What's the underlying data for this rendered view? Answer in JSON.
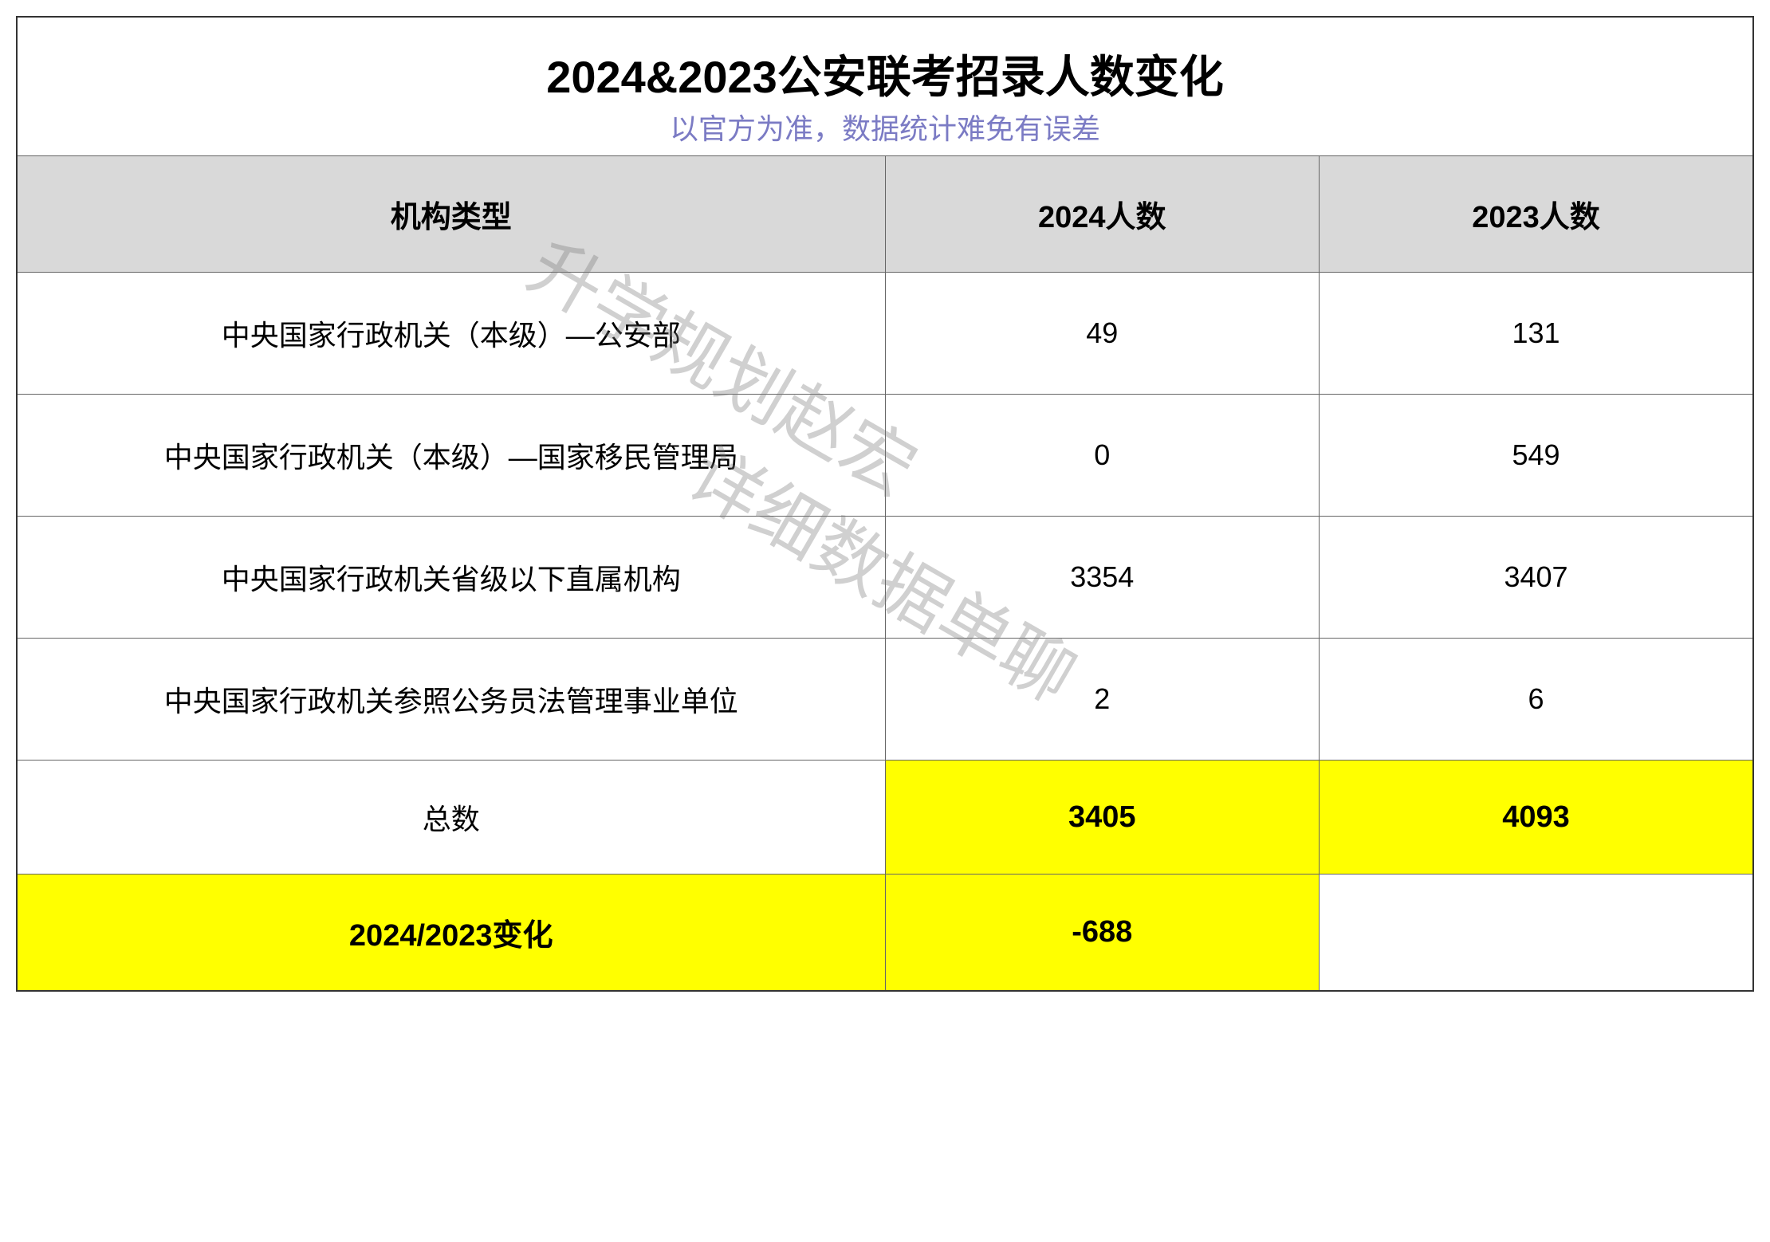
{
  "title": "2024&2023公安联考招录人数变化",
  "subtitle": "以官方为准，数据统计难免有误差",
  "headers": {
    "type": "机构类型",
    "year2024": "2024人数",
    "year2023": "2023人数"
  },
  "rows": [
    {
      "type": "中央国家行政机关（本级）—公安部",
      "y2024": "49",
      "y2023": "131"
    },
    {
      "type": "中央国家行政机关（本级）—国家移民管理局",
      "y2024": "0",
      "y2023": "549"
    },
    {
      "type": "中央国家行政机关省级以下直属机构",
      "y2024": "3354",
      "y2023": "3407"
    },
    {
      "type": "中央国家行政机关参照公务员法管理事业单位",
      "y2024": "2",
      "y2023": "6"
    }
  ],
  "total": {
    "label": "总数",
    "y2024": "3405",
    "y2023": "4093"
  },
  "change": {
    "label": "2024/2023变化",
    "value": "-688"
  },
  "watermarks": {
    "wm1": "升学规划赵宏",
    "wm2": "详细数据单聊"
  },
  "colors": {
    "header_bg": "#d9d9d9",
    "highlight": "#ffff00",
    "subtitle": "#7b7bc4",
    "border": "#666666",
    "text": "#000000",
    "watermark": "rgba(120,120,120,0.35)"
  }
}
